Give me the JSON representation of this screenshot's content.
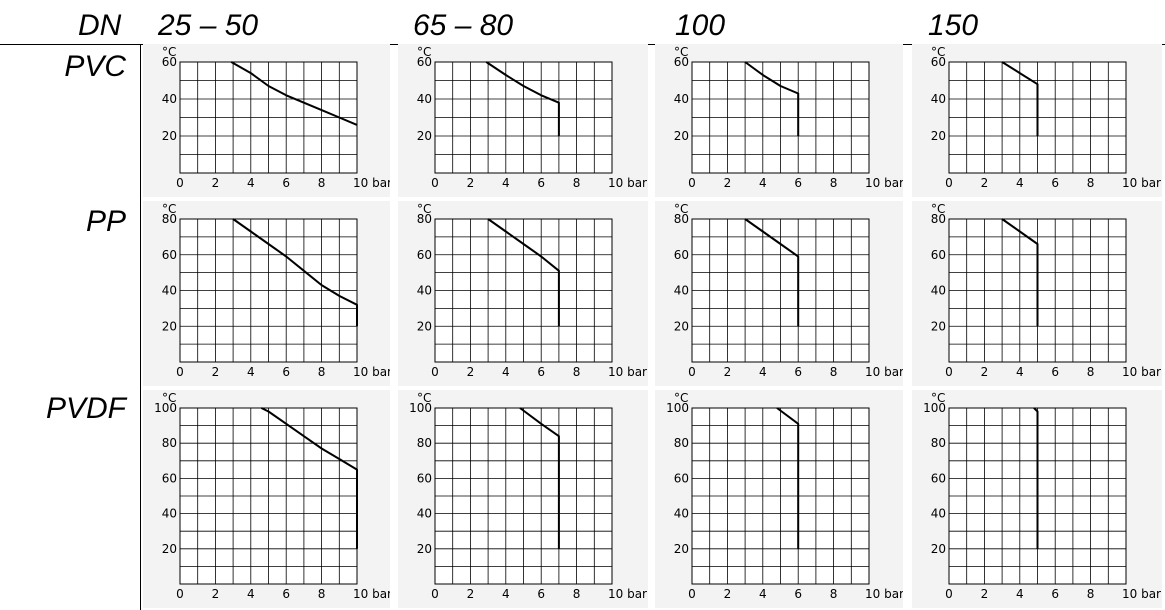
{
  "header": {
    "dn_label": "DN",
    "columns": [
      "25 – 50",
      "65 – 80",
      "100",
      "150"
    ]
  },
  "rows": [
    {
      "label": "PVC"
    },
    {
      "label": "PP"
    },
    {
      "label": "PVDF"
    }
  ],
  "chart_data": [
    {
      "type": "line",
      "material": "PVC",
      "dn": "25 – 50",
      "ylabel": "°C",
      "xunit": "bar",
      "xlim": [
        0,
        10
      ],
      "ylim": [
        0,
        60
      ],
      "xticks": [
        0,
        2,
        4,
        6,
        8,
        10
      ],
      "yticks": [
        20,
        40,
        60
      ],
      "grid": true,
      "x": [
        2.9,
        4,
        5,
        6,
        7,
        8,
        9,
        10
      ],
      "y": [
        60,
        54,
        47,
        42,
        38,
        34,
        30,
        26
      ]
    },
    {
      "type": "line",
      "material": "PVC",
      "dn": "65 – 80",
      "ylabel": "°C",
      "xunit": "bar",
      "xlim": [
        0,
        10
      ],
      "ylim": [
        0,
        60
      ],
      "xticks": [
        0,
        2,
        4,
        6,
        8,
        10
      ],
      "yticks": [
        20,
        40,
        60
      ],
      "grid": true,
      "x": [
        2.9,
        4,
        5,
        6,
        7,
        7
      ],
      "y": [
        60,
        53,
        47,
        42,
        38,
        20
      ]
    },
    {
      "type": "line",
      "material": "PVC",
      "dn": "100",
      "ylabel": "°C",
      "xunit": "bar",
      "xlim": [
        0,
        10
      ],
      "ylim": [
        0,
        60
      ],
      "xticks": [
        0,
        2,
        4,
        6,
        8,
        10
      ],
      "yticks": [
        20,
        40,
        60
      ],
      "grid": true,
      "x": [
        3,
        4,
        5,
        6,
        6
      ],
      "y": [
        60,
        53,
        47,
        43,
        20
      ]
    },
    {
      "type": "line",
      "material": "PVC",
      "dn": "150",
      "ylabel": "°C",
      "xunit": "bar",
      "xlim": [
        0,
        10
      ],
      "ylim": [
        0,
        60
      ],
      "xticks": [
        0,
        2,
        4,
        6,
        8,
        10
      ],
      "yticks": [
        20,
        40,
        60
      ],
      "grid": true,
      "x": [
        3,
        4,
        5,
        5
      ],
      "y": [
        60,
        54,
        48,
        20
      ]
    },
    {
      "type": "line",
      "material": "PP",
      "dn": "25 – 50",
      "ylabel": "°C",
      "xunit": "bar",
      "xlim": [
        0,
        10
      ],
      "ylim": [
        0,
        80
      ],
      "xticks": [
        0,
        2,
        4,
        6,
        8,
        10
      ],
      "yticks": [
        20,
        40,
        60,
        80
      ],
      "grid": true,
      "x": [
        3,
        4,
        5,
        6,
        7,
        8,
        9,
        10,
        10
      ],
      "y": [
        80,
        73,
        66,
        59,
        51,
        43,
        37,
        32,
        20
      ]
    },
    {
      "type": "line",
      "material": "PP",
      "dn": "65 – 80",
      "ylabel": "°C",
      "xunit": "bar",
      "xlim": [
        0,
        10
      ],
      "ylim": [
        0,
        80
      ],
      "xticks": [
        0,
        2,
        4,
        6,
        8,
        10
      ],
      "yticks": [
        20,
        40,
        60,
        80
      ],
      "grid": true,
      "x": [
        3,
        4,
        5,
        6,
        7,
        7
      ],
      "y": [
        80,
        73,
        66,
        59,
        51,
        20
      ]
    },
    {
      "type": "line",
      "material": "PP",
      "dn": "100",
      "ylabel": "°C",
      "xunit": "bar",
      "xlim": [
        0,
        10
      ],
      "ylim": [
        0,
        80
      ],
      "xticks": [
        0,
        2,
        4,
        6,
        8,
        10
      ],
      "yticks": [
        20,
        40,
        60,
        80
      ],
      "grid": true,
      "x": [
        3,
        4,
        5,
        6,
        6
      ],
      "y": [
        80,
        73,
        66,
        59,
        20
      ]
    },
    {
      "type": "line",
      "material": "PP",
      "dn": "150",
      "ylabel": "°C",
      "xunit": "bar",
      "xlim": [
        0,
        10
      ],
      "ylim": [
        0,
        80
      ],
      "xticks": [
        0,
        2,
        4,
        6,
        8,
        10
      ],
      "yticks": [
        20,
        40,
        60,
        80
      ],
      "grid": true,
      "x": [
        3,
        4,
        5,
        5
      ],
      "y": [
        80,
        73,
        66,
        20
      ]
    },
    {
      "type": "line",
      "material": "PVDF",
      "dn": "25 – 50",
      "ylabel": "°C",
      "xunit": "bar",
      "xlim": [
        0,
        10
      ],
      "ylim": [
        0,
        100
      ],
      "xticks": [
        0,
        2,
        4,
        6,
        8,
        10
      ],
      "yticks": [
        20,
        40,
        60,
        80,
        100
      ],
      "grid": true,
      "x": [
        4.6,
        5,
        6,
        7,
        8,
        9,
        10,
        10
      ],
      "y": [
        100,
        98,
        91,
        84,
        77,
        71,
        65,
        20
      ]
    },
    {
      "type": "line",
      "material": "PVDF",
      "dn": "65 – 80",
      "ylabel": "°C",
      "xunit": "bar",
      "xlim": [
        0,
        10
      ],
      "ylim": [
        0,
        100
      ],
      "xticks": [
        0,
        2,
        4,
        6,
        8,
        10
      ],
      "yticks": [
        20,
        40,
        60,
        80,
        100
      ],
      "grid": true,
      "x": [
        4.8,
        6,
        7,
        7
      ],
      "y": [
        100,
        91,
        84,
        20
      ]
    },
    {
      "type": "line",
      "material": "PVDF",
      "dn": "100",
      "ylabel": "°C",
      "xunit": "bar",
      "xlim": [
        0,
        10
      ],
      "ylim": [
        0,
        100
      ],
      "xticks": [
        0,
        2,
        4,
        6,
        8,
        10
      ],
      "yticks": [
        20,
        40,
        60,
        80,
        100
      ],
      "grid": true,
      "x": [
        4.8,
        6,
        6
      ],
      "y": [
        100,
        91,
        20
      ]
    },
    {
      "type": "line",
      "material": "PVDF",
      "dn": "150",
      "ylabel": "°C",
      "xunit": "bar",
      "xlim": [
        0,
        10
      ],
      "ylim": [
        0,
        100
      ],
      "xticks": [
        0,
        2,
        4,
        6,
        8,
        10
      ],
      "yticks": [
        20,
        40,
        60,
        80,
        100
      ],
      "grid": true,
      "x": [
        4.8,
        5,
        5
      ],
      "y": [
        100,
        98,
        20
      ]
    }
  ]
}
